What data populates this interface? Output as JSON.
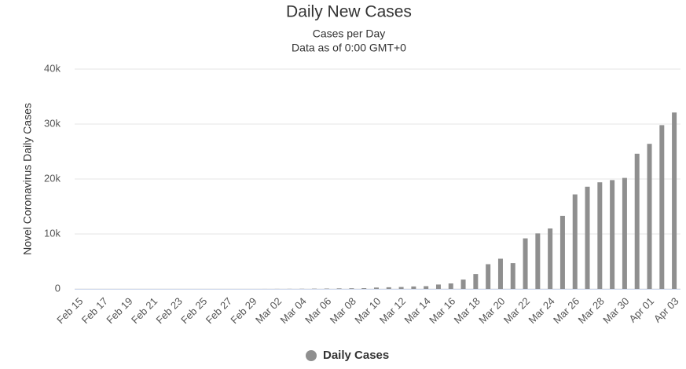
{
  "chart_data": {
    "type": "bar",
    "title": "Daily New Cases",
    "subtitle": [
      "Cases per Day",
      "Data as of 0:00 GMT+0"
    ],
    "y_label": "Novel Coronavirus Daily Cases",
    "categories": [
      "Feb 15",
      null,
      "Feb 17",
      null,
      "Feb 19",
      null,
      "Feb 21",
      null,
      "Feb 23",
      null,
      "Feb 25",
      null,
      "Feb 27",
      null,
      "Feb 29",
      null,
      "Mar 02",
      null,
      "Mar 04",
      null,
      "Mar 06",
      null,
      "Mar 08",
      null,
      "Mar 10",
      null,
      "Mar 12",
      null,
      "Mar 14",
      null,
      "Mar 16",
      null,
      "Mar 18",
      null,
      "Mar 20",
      null,
      "Mar 22",
      null,
      "Mar 24",
      null,
      "Mar 26",
      null,
      "Mar 28",
      null,
      "Mar 30",
      null,
      "Apr 01",
      null,
      "Apr 03"
    ],
    "series": [
      {
        "name": "Daily Cases",
        "color": "#8f8f8f",
        "values": [
          0,
          0,
          0,
          0,
          0,
          0,
          0,
          0,
          0,
          0,
          0,
          0,
          0,
          0,
          0,
          8,
          15,
          20,
          30,
          50,
          70,
          100,
          120,
          140,
          250,
          300,
          350,
          450,
          500,
          800,
          1000,
          1700,
          2700,
          4500,
          5500,
          4700,
          9200,
          10100,
          11000,
          13300,
          17200,
          18600,
          19400,
          19800,
          20200,
          24600,
          26400,
          29800,
          32100
        ]
      }
    ],
    "ylim": [
      0,
      40000
    ],
    "yticks": [
      0,
      {
        "value": 10000,
        "label": "10k"
      },
      {
        "value": 20000,
        "label": "20k"
      },
      {
        "value": 30000,
        "label": "30k"
      },
      {
        "value": 40000,
        "label": "40k"
      }
    ],
    "grid": true
  }
}
